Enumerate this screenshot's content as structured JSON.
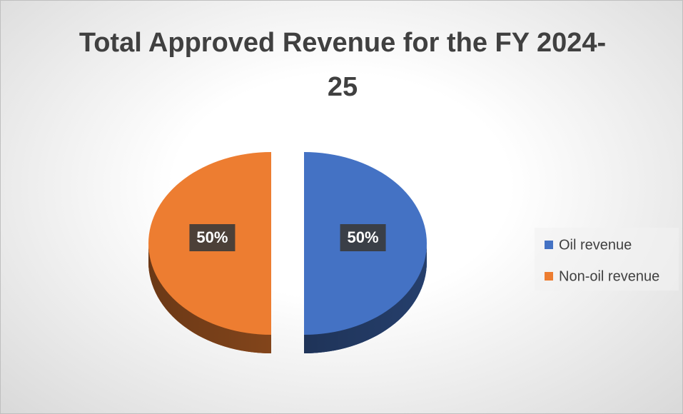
{
  "chart_data": {
    "type": "pie",
    "title": "Total Approved Revenue for the FY 2024-25",
    "categories": [
      "Oil revenue",
      "Non-oil revenue"
    ],
    "values": [
      50,
      50
    ],
    "value_labels": [
      "50%",
      "50%"
    ],
    "colors": [
      "#4472c4",
      "#ed7d31"
    ],
    "legend": "right"
  }
}
